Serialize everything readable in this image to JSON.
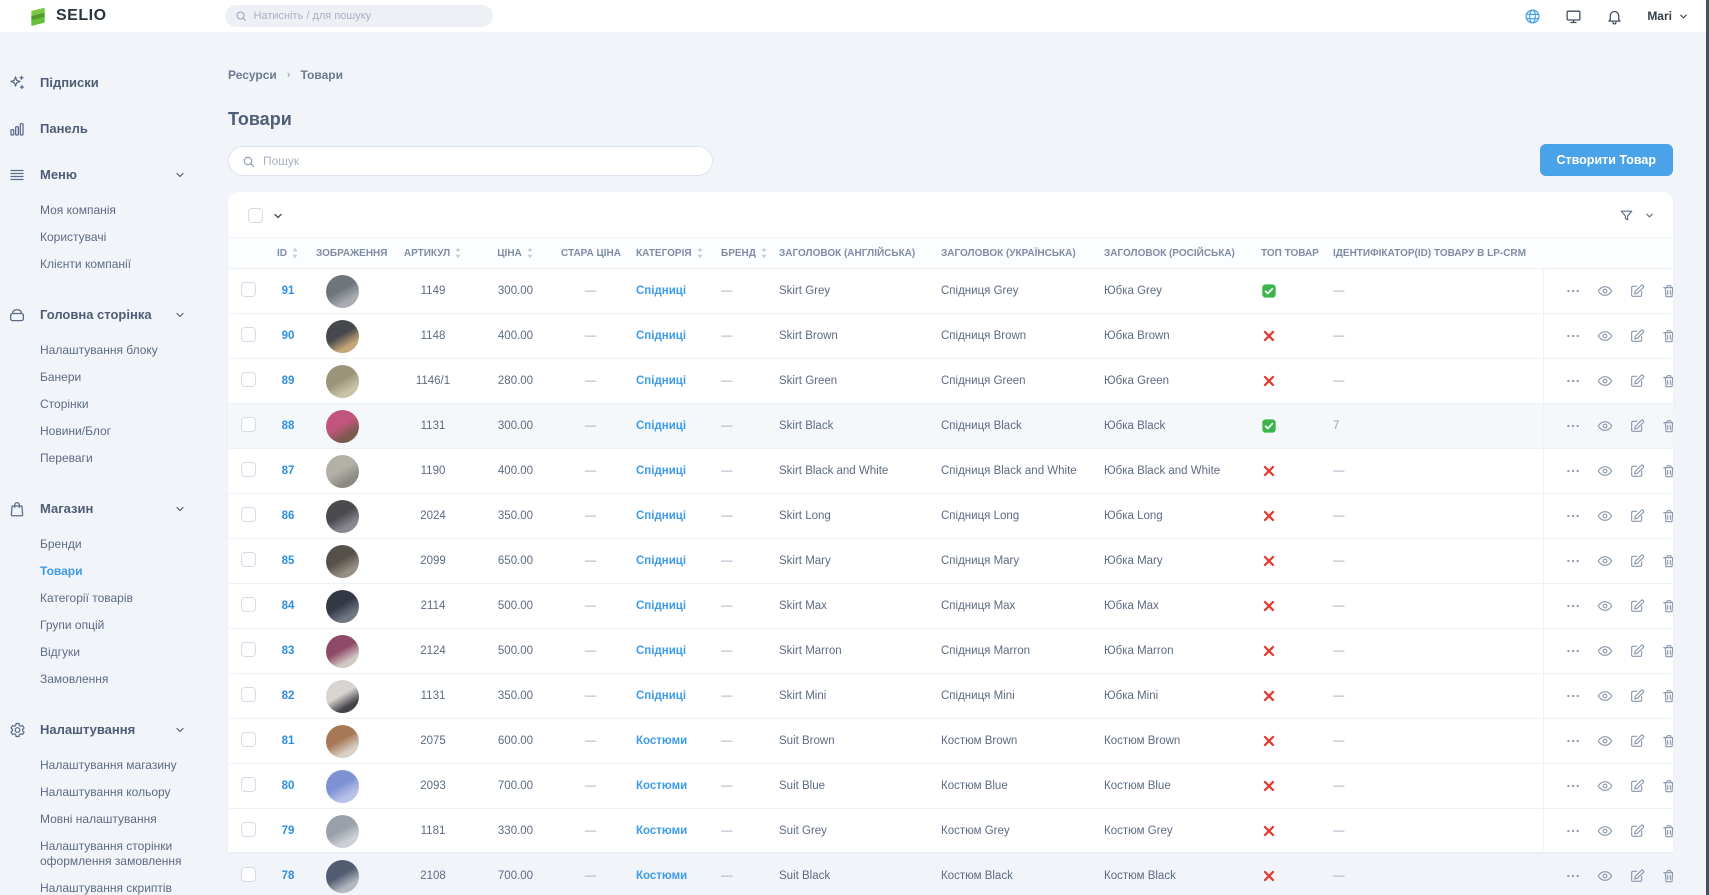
{
  "topbar": {
    "logo_text": "SELIO",
    "search_placeholder": "Натисніть / для пошуку",
    "user_name": "Mari"
  },
  "sidebar": {
    "sections": [
      {
        "icon": "sparkles-icon",
        "label": "Підписки",
        "chevron": false,
        "children": []
      },
      {
        "icon": "bar-chart-icon",
        "label": "Панель",
        "chevron": false,
        "children": []
      },
      {
        "icon": "menu-icon",
        "label": "Меню",
        "chevron": true,
        "children": [
          {
            "label": "Моя компанія"
          },
          {
            "label": "Користувачі"
          },
          {
            "label": "Клієнти компанії"
          }
        ]
      },
      {
        "icon": "archive-icon",
        "label": "Головна сторінка",
        "chevron": true,
        "children": [
          {
            "label": "Налаштування блоку"
          },
          {
            "label": "Банери"
          },
          {
            "label": "Сторінки"
          },
          {
            "label": "Новини/Блог"
          },
          {
            "label": "Переваги"
          }
        ]
      },
      {
        "icon": "shopping-bag-icon",
        "label": "Магазин",
        "chevron": true,
        "children": [
          {
            "label": "Бренди"
          },
          {
            "label": "Товари",
            "active": true
          },
          {
            "label": "Категорії товарів"
          },
          {
            "label": "Групи опцій"
          },
          {
            "label": "Відгуки"
          },
          {
            "label": "Замовлення"
          }
        ]
      },
      {
        "icon": "gear-icon",
        "label": "Налаштування",
        "chevron": true,
        "children": [
          {
            "label": "Налаштування магазину"
          },
          {
            "label": "Налаштування кольору"
          },
          {
            "label": "Мовні налаштування"
          },
          {
            "label": "Налаштування сторінки оформлення замовлення"
          },
          {
            "label": "Налаштування скриптів"
          }
        ]
      }
    ]
  },
  "breadcrumb": {
    "items": [
      "Ресурси",
      "Товари"
    ]
  },
  "page": {
    "title": "Товари",
    "search_placeholder": "Пошук",
    "create_button": "Створити Товар"
  },
  "table": {
    "columns": [
      {
        "label": "ID",
        "sortable": true
      },
      {
        "label": "ЗОБРАЖЕННЯ",
        "sortable": false
      },
      {
        "label": "АРТИКУЛ",
        "sortable": true
      },
      {
        "label": "ЦІНА",
        "sortable": true
      },
      {
        "label": "СТАРА ЦІНА",
        "sortable": false
      },
      {
        "label": "КАТЕГОРІЯ",
        "sortable": true
      },
      {
        "label": "БРЕНД",
        "sortable": true
      },
      {
        "label": "ЗАГОЛОВОК (АНГЛІЙСЬКА)",
        "sortable": false
      },
      {
        "label": "ЗАГОЛОВОК (УКРАЇНСЬКА)",
        "sortable": false
      },
      {
        "label": "ЗАГОЛОВОК (РОСІЙСЬКА)",
        "sortable": false
      },
      {
        "label": "ТОП ТОВАР",
        "sortable": false
      },
      {
        "label": "ІДЕНТИФІКАТОР(ID) ТОВАРУ В LP-CRM",
        "sortable": false
      }
    ],
    "rows": [
      {
        "id": "91",
        "sku": "1149",
        "price": "300.00",
        "old_price": "—",
        "category": "Спідниці",
        "brand": "—",
        "title_en": "Skirt Grey",
        "title_uk": "Спідниця Grey",
        "title_ru": "Юбка Grey",
        "top_product": true,
        "lp_crm_id": "—",
        "highlighted": false,
        "image_colors": [
          "#70757c",
          "#a9adb2"
        ]
      },
      {
        "id": "90",
        "sku": "1148",
        "price": "400.00",
        "old_price": "—",
        "category": "Спідниці",
        "brand": "—",
        "title_en": "Skirt Brown",
        "title_uk": "Спідниця Brown",
        "title_ru": "Юбка Brown",
        "top_product": false,
        "lp_crm_id": "—",
        "highlighted": false,
        "image_colors": [
          "#46484d",
          "#c4a578"
        ]
      },
      {
        "id": "89",
        "sku": "1146/1",
        "price": "280.00",
        "old_price": "—",
        "category": "Спідниці",
        "brand": "—",
        "title_en": "Skirt Green",
        "title_uk": "Спідниця Green",
        "title_ru": "Юбка Green",
        "top_product": false,
        "lp_crm_id": "—",
        "highlighted": false,
        "image_colors": [
          "#9b9478",
          "#c9c2a6"
        ]
      },
      {
        "id": "88",
        "sku": "1131",
        "price": "300.00",
        "old_price": "—",
        "category": "Спідниці",
        "brand": "—",
        "title_en": "Skirt Black",
        "title_uk": "Спідниця Black",
        "title_ru": "Юбка Black",
        "top_product": true,
        "lp_crm_id": "7",
        "highlighted": true,
        "image_colors": [
          "#c2557e",
          "#7a5a4a"
        ]
      },
      {
        "id": "87",
        "sku": "1190",
        "price": "400.00",
        "old_price": "—",
        "category": "Спідниці",
        "brand": "—",
        "title_en": "Skirt Black and White",
        "title_uk": "Спідниця Black and White",
        "title_ru": "Юбка Black and White",
        "top_product": false,
        "lp_crm_id": "—",
        "highlighted": false,
        "image_colors": [
          "#b3b0a8",
          "#8b8982"
        ]
      },
      {
        "id": "86",
        "sku": "2024",
        "price": "350.00",
        "old_price": "—",
        "category": "Спідниці",
        "brand": "—",
        "title_en": "Skirt Long",
        "title_uk": "Спідниця Long",
        "title_ru": "Юбка Long",
        "top_product": false,
        "lp_crm_id": "—",
        "highlighted": false,
        "image_colors": [
          "#4a494e",
          "#8a888f"
        ]
      },
      {
        "id": "85",
        "sku": "2099",
        "price": "650.00",
        "old_price": "—",
        "category": "Спідниці",
        "brand": "—",
        "title_en": "Skirt Mary",
        "title_uk": "Спідниця Mary",
        "title_ru": "Юбка Mary",
        "top_product": false,
        "lp_crm_id": "—",
        "highlighted": false,
        "image_colors": [
          "#555049",
          "#968e82"
        ]
      },
      {
        "id": "84",
        "sku": "2114",
        "price": "500.00",
        "old_price": "—",
        "category": "Спідниці",
        "brand": "—",
        "title_en": "Skirt Max",
        "title_uk": "Спідниця Max",
        "title_ru": "Юбка Max",
        "top_product": false,
        "lp_crm_id": "—",
        "highlighted": false,
        "image_colors": [
          "#343845",
          "#717683"
        ]
      },
      {
        "id": "83",
        "sku": "2124",
        "price": "500.00",
        "old_price": "—",
        "category": "Спідниці",
        "brand": "—",
        "title_en": "Skirt Marron",
        "title_uk": "Спідниця Marron",
        "title_ru": "Юбка Marron",
        "top_product": false,
        "lp_crm_id": "—",
        "highlighted": false,
        "image_colors": [
          "#8e4a66",
          "#cfc9c4"
        ]
      },
      {
        "id": "82",
        "sku": "1131",
        "price": "350.00",
        "old_price": "—",
        "category": "Спідниці",
        "brand": "—",
        "title_en": "Skirt Mini",
        "title_uk": "Спідниця Mini",
        "title_ru": "Юбка Mini",
        "top_product": false,
        "lp_crm_id": "—",
        "highlighted": false,
        "image_colors": [
          "#d8d4cf",
          "#45434a"
        ]
      },
      {
        "id": "81",
        "sku": "2075",
        "price": "600.00",
        "old_price": "—",
        "category": "Костюми",
        "brand": "—",
        "title_en": "Suit Brown",
        "title_uk": "Костюм Brown",
        "title_ru": "Костюм Brown",
        "top_product": false,
        "lp_crm_id": "—",
        "highlighted": false,
        "image_colors": [
          "#a87856",
          "#d9cfc5"
        ]
      },
      {
        "id": "80",
        "sku": "2093",
        "price": "700.00",
        "old_price": "—",
        "category": "Костюми",
        "brand": "—",
        "title_en": "Suit Blue",
        "title_uk": "Костюм Blue",
        "title_ru": "Костюм Blue",
        "top_product": false,
        "lp_crm_id": "—",
        "highlighted": false,
        "image_colors": [
          "#7d92d2",
          "#b7c2e9"
        ]
      },
      {
        "id": "79",
        "sku": "1181",
        "price": "330.00",
        "old_price": "—",
        "category": "Костюми",
        "brand": "—",
        "title_en": "Suit Grey",
        "title_uk": "Костюм Grey",
        "title_ru": "Костюм Grey",
        "top_product": false,
        "lp_crm_id": "—",
        "highlighted": false,
        "image_colors": [
          "#9aa0a8",
          "#cdd1d7"
        ]
      },
      {
        "id": "78",
        "sku": "2108",
        "price": "700.00",
        "old_price": "—",
        "category": "Костюми",
        "brand": "—",
        "title_en": "Suit Black",
        "title_uk": "Костюм Black",
        "title_ru": "Костюм Black",
        "top_product": false,
        "lp_crm_id": "—",
        "highlighted": false,
        "image_colors": [
          "#515c70",
          "#b3b7bf"
        ]
      }
    ]
  },
  "colors": {
    "accent": "#4aa3e8",
    "link": "#2e8fe0",
    "success": "#3bb54a",
    "danger": "#e23a2e",
    "page_bg": "#f1f4f9",
    "logo_green": "#6abf3a"
  }
}
